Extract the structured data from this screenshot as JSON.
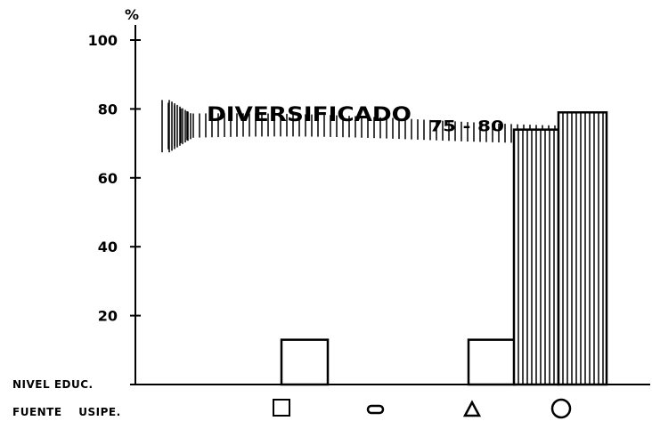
{
  "chart_data": {
    "type": "bar",
    "y_unit_label": "%",
    "ylim": [
      0,
      100
    ],
    "yticks": [
      20,
      40,
      60,
      80,
      100
    ],
    "row_labels": {
      "level": "NIVEL EDUC.",
      "source": "FUENTE    USIPE."
    },
    "band_label": {
      "main": "DIVERSIFICADO",
      "period": "75 - 80",
      "value_min": 70,
      "value_max": 80
    },
    "categories": [
      "□",
      "▭",
      "△",
      "○"
    ],
    "category_icons": [
      "square-icon",
      "rounded-rect-icon",
      "triangle-icon",
      "circle-icon"
    ],
    "series": [
      {
        "values": [
          13,
          0,
          13,
          0
        ],
        "pattern": "none"
      },
      {
        "values": [
          0,
          0,
          74,
          79
        ],
        "pattern": "vertical-hatch"
      }
    ],
    "colors": {
      "ink": "#000000",
      "paper": "#ffffff"
    }
  }
}
